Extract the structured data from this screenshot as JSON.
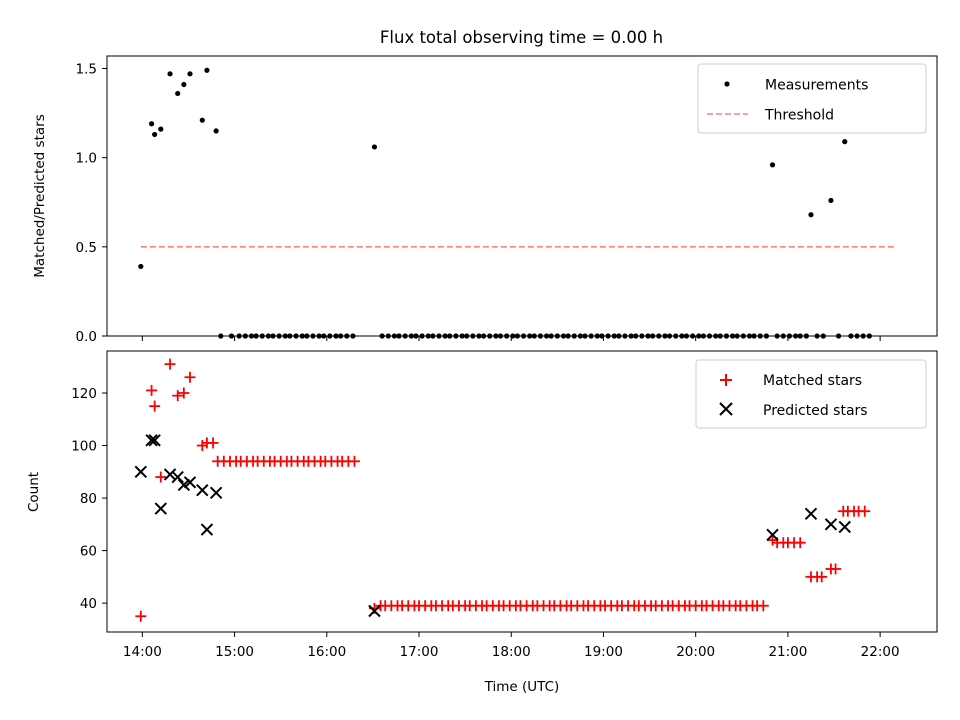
{
  "title": "Flux total observing time = 0.00 h",
  "xlabel": "Time (UTC)",
  "x_ticks": [
    "14:00",
    "15:00",
    "16:00",
    "17:00",
    "18:00",
    "19:00",
    "20:00",
    "21:00",
    "22:00"
  ],
  "colors": {
    "measurement": "#000000",
    "threshold": "#ff7f7f",
    "matched": "#ff0000",
    "predicted": "#000000"
  },
  "chart_data": [
    {
      "type": "scatter",
      "ylabel": "Matched/Predicted stars",
      "xlim": [
        "13:37",
        "22:37"
      ],
      "ylim": [
        0,
        1.57
      ],
      "y_ticks": [
        "0.0",
        "0.5",
        "1.0",
        "1.5"
      ],
      "legend_position": "top-right",
      "legend": [
        "Measurements",
        "Threshold"
      ],
      "threshold": {
        "name": "Threshold",
        "y": 0.5,
        "x_range": [
          "13:59",
          "22:09"
        ]
      },
      "series": [
        {
          "name": "Measurements",
          "points": [
            [
              "13:59",
              0.39
            ],
            [
              "14:06",
              1.19
            ],
            [
              "14:08",
              1.13
            ],
            [
              "14:12",
              1.16
            ],
            [
              "14:18",
              1.47
            ],
            [
              "14:23",
              1.36
            ],
            [
              "14:27",
              1.41
            ],
            [
              "14:31",
              1.47
            ],
            [
              "14:39",
              1.21
            ],
            [
              "14:42",
              1.49
            ],
            [
              "14:48",
              1.15
            ],
            [
              "14:51",
              0.0
            ],
            [
              "14:58",
              0.0
            ],
            [
              "15:03",
              0.0
            ],
            [
              "15:07",
              0.0
            ],
            [
              "15:11",
              0.0
            ],
            [
              "15:14",
              0.0
            ],
            [
              "15:18",
              0.0
            ],
            [
              "15:22",
              0.0
            ],
            [
              "15:25",
              0.0
            ],
            [
              "15:29",
              0.0
            ],
            [
              "15:33",
              0.0
            ],
            [
              "15:36",
              0.0
            ],
            [
              "15:40",
              0.0
            ],
            [
              "15:44",
              0.0
            ],
            [
              "15:47",
              0.0
            ],
            [
              "15:51",
              0.0
            ],
            [
              "15:55",
              0.0
            ],
            [
              "15:58",
              0.0
            ],
            [
              "16:02",
              0.0
            ],
            [
              "16:06",
              0.0
            ],
            [
              "16:09",
              0.0
            ],
            [
              "16:13",
              0.0
            ],
            [
              "16:17",
              0.0
            ],
            [
              "16:31",
              1.06
            ],
            [
              "16:36",
              0.0
            ],
            [
              "16:40",
              0.0
            ],
            [
              "16:44",
              0.0
            ],
            [
              "16:47",
              0.0
            ],
            [
              "16:51",
              0.0
            ],
            [
              "16:55",
              0.0
            ],
            [
              "16:58",
              0.0
            ],
            [
              "17:02",
              0.0
            ],
            [
              "17:06",
              0.0
            ],
            [
              "17:09",
              0.0
            ],
            [
              "17:13",
              0.0
            ],
            [
              "17:17",
              0.0
            ],
            [
              "17:20",
              0.0
            ],
            [
              "17:24",
              0.0
            ],
            [
              "17:28",
              0.0
            ],
            [
              "17:31",
              0.0
            ],
            [
              "17:35",
              0.0
            ],
            [
              "17:39",
              0.0
            ],
            [
              "17:42",
              0.0
            ],
            [
              "17:46",
              0.0
            ],
            [
              "17:50",
              0.0
            ],
            [
              "17:53",
              0.0
            ],
            [
              "17:57",
              0.0
            ],
            [
              "18:01",
              0.0
            ],
            [
              "18:04",
              0.0
            ],
            [
              "18:08",
              0.0
            ],
            [
              "18:12",
              0.0
            ],
            [
              "18:15",
              0.0
            ],
            [
              "18:19",
              0.0
            ],
            [
              "18:23",
              0.0
            ],
            [
              "18:26",
              0.0
            ],
            [
              "18:30",
              0.0
            ],
            [
              "18:34",
              0.0
            ],
            [
              "18:37",
              0.0
            ],
            [
              "18:41",
              0.0
            ],
            [
              "18:45",
              0.0
            ],
            [
              "18:48",
              0.0
            ],
            [
              "18:52",
              0.0
            ],
            [
              "18:56",
              0.0
            ],
            [
              "18:59",
              0.0
            ],
            [
              "19:03",
              0.0
            ],
            [
              "19:07",
              0.0
            ],
            [
              "19:10",
              0.0
            ],
            [
              "19:14",
              0.0
            ],
            [
              "19:18",
              0.0
            ],
            [
              "19:21",
              0.0
            ],
            [
              "19:25",
              0.0
            ],
            [
              "19:29",
              0.0
            ],
            [
              "19:32",
              0.0
            ],
            [
              "19:36",
              0.0
            ],
            [
              "19:40",
              0.0
            ],
            [
              "19:43",
              0.0
            ],
            [
              "19:47",
              0.0
            ],
            [
              "19:51",
              0.0
            ],
            [
              "19:54",
              0.0
            ],
            [
              "19:58",
              0.0
            ],
            [
              "20:02",
              0.0
            ],
            [
              "20:05",
              0.0
            ],
            [
              "20:09",
              0.0
            ],
            [
              "20:13",
              0.0
            ],
            [
              "20:16",
              0.0
            ],
            [
              "20:20",
              0.0
            ],
            [
              "20:24",
              0.0
            ],
            [
              "20:27",
              0.0
            ],
            [
              "20:31",
              0.0
            ],
            [
              "20:35",
              0.0
            ],
            [
              "20:38",
              0.0
            ],
            [
              "20:42",
              0.0
            ],
            [
              "20:46",
              0.0
            ],
            [
              "20:50",
              0.96
            ],
            [
              "20:53",
              0.0
            ],
            [
              "20:57",
              0.0
            ],
            [
              "21:01",
              0.0
            ],
            [
              "21:05",
              0.0
            ],
            [
              "21:08",
              0.0
            ],
            [
              "21:12",
              0.0
            ],
            [
              "21:15",
              0.68
            ],
            [
              "21:19",
              0.0
            ],
            [
              "21:23",
              0.0
            ],
            [
              "21:28",
              0.76
            ],
            [
              "21:33",
              0.0
            ],
            [
              "21:37",
              1.09
            ],
            [
              "21:41",
              0.0
            ],
            [
              "21:45",
              0.0
            ],
            [
              "21:49",
              0.0
            ],
            [
              "21:53",
              0.0
            ]
          ]
        }
      ]
    },
    {
      "type": "scatter",
      "ylabel": "Count",
      "xlim": [
        "13:37",
        "22:37"
      ],
      "ylim": [
        29,
        136
      ],
      "y_ticks": [
        "40",
        "60",
        "80",
        "100",
        "120"
      ],
      "legend_position": "top-right",
      "legend": [
        "Matched stars",
        "Predicted stars"
      ],
      "series": [
        {
          "name": "Matched stars",
          "points": [
            [
              "13:59",
              35
            ],
            [
              "14:06",
              121
            ],
            [
              "14:08",
              115
            ],
            [
              "14:12",
              88
            ],
            [
              "14:18",
              131
            ],
            [
              "14:23",
              119
            ],
            [
              "14:27",
              120
            ],
            [
              "14:31",
              126
            ],
            [
              "14:39",
              100
            ],
            [
              "14:42",
              101
            ],
            [
              "14:46",
              101
            ],
            [
              "14:49",
              94
            ],
            [
              "14:53",
              94
            ],
            [
              "14:57",
              94
            ],
            [
              "15:01",
              94
            ],
            [
              "15:04",
              94
            ],
            [
              "15:08",
              94
            ],
            [
              "15:12",
              94
            ],
            [
              "15:15",
              94
            ],
            [
              "15:19",
              94
            ],
            [
              "15:23",
              94
            ],
            [
              "15:26",
              94
            ],
            [
              "15:30",
              94
            ],
            [
              "15:34",
              94
            ],
            [
              "15:37",
              94
            ],
            [
              "15:41",
              94
            ],
            [
              "15:45",
              94
            ],
            [
              "15:48",
              94
            ],
            [
              "15:52",
              94
            ],
            [
              "15:56",
              94
            ],
            [
              "15:59",
              94
            ],
            [
              "16:03",
              94
            ],
            [
              "16:07",
              94
            ],
            [
              "16:10",
              94
            ],
            [
              "16:14",
              94
            ],
            [
              "16:18",
              94
            ],
            [
              "16:31",
              38
            ],
            [
              "16:35",
              39
            ],
            [
              "16:38",
              39
            ],
            [
              "16:42",
              39
            ],
            [
              "16:46",
              39
            ],
            [
              "16:49",
              39
            ],
            [
              "16:53",
              39
            ],
            [
              "16:57",
              39
            ],
            [
              "17:00",
              39
            ],
            [
              "17:04",
              39
            ],
            [
              "17:08",
              39
            ],
            [
              "17:11",
              39
            ],
            [
              "17:15",
              39
            ],
            [
              "17:19",
              39
            ],
            [
              "17:22",
              39
            ],
            [
              "17:26",
              39
            ],
            [
              "17:30",
              39
            ],
            [
              "17:33",
              39
            ],
            [
              "17:37",
              39
            ],
            [
              "17:41",
              39
            ],
            [
              "17:44",
              39
            ],
            [
              "17:48",
              39
            ],
            [
              "17:52",
              39
            ],
            [
              "17:55",
              39
            ],
            [
              "17:59",
              39
            ],
            [
              "18:03",
              39
            ],
            [
              "18:06",
              39
            ],
            [
              "18:10",
              39
            ],
            [
              "18:14",
              39
            ],
            [
              "18:17",
              39
            ],
            [
              "18:21",
              39
            ],
            [
              "18:25",
              39
            ],
            [
              "18:28",
              39
            ],
            [
              "18:32",
              39
            ],
            [
              "18:36",
              39
            ],
            [
              "18:39",
              39
            ],
            [
              "18:43",
              39
            ],
            [
              "18:47",
              39
            ],
            [
              "18:50",
              39
            ],
            [
              "18:54",
              39
            ],
            [
              "18:58",
              39
            ],
            [
              "19:01",
              39
            ],
            [
              "19:05",
              39
            ],
            [
              "19:09",
              39
            ],
            [
              "19:12",
              39
            ],
            [
              "19:16",
              39
            ],
            [
              "19:20",
              39
            ],
            [
              "19:23",
              39
            ],
            [
              "19:27",
              39
            ],
            [
              "19:31",
              39
            ],
            [
              "19:34",
              39
            ],
            [
              "19:38",
              39
            ],
            [
              "19:42",
              39
            ],
            [
              "19:45",
              39
            ],
            [
              "19:49",
              39
            ],
            [
              "19:53",
              39
            ],
            [
              "19:56",
              39
            ],
            [
              "20:00",
              39
            ],
            [
              "20:04",
              39
            ],
            [
              "20:07",
              39
            ],
            [
              "20:11",
              39
            ],
            [
              "20:15",
              39
            ],
            [
              "20:18",
              39
            ],
            [
              "20:22",
              39
            ],
            [
              "20:26",
              39
            ],
            [
              "20:29",
              39
            ],
            [
              "20:33",
              39
            ],
            [
              "20:37",
              39
            ],
            [
              "20:40",
              39
            ],
            [
              "20:44",
              39
            ],
            [
              "20:50",
              64
            ],
            [
              "20:53",
              63
            ],
            [
              "20:57",
              63
            ],
            [
              "21:00",
              63
            ],
            [
              "21:04",
              63
            ],
            [
              "21:08",
              63
            ],
            [
              "21:15",
              50
            ],
            [
              "21:19",
              50
            ],
            [
              "21:22",
              50
            ],
            [
              "21:28",
              53
            ],
            [
              "21:31",
              53
            ],
            [
              "21:36",
              75
            ],
            [
              "21:39",
              75
            ],
            [
              "21:43",
              75
            ],
            [
              "21:46",
              75
            ],
            [
              "21:50",
              75
            ]
          ]
        },
        {
          "name": "Predicted stars",
          "points": [
            [
              "13:59",
              90
            ],
            [
              "14:06",
              102
            ],
            [
              "14:08",
              102
            ],
            [
              "14:12",
              76
            ],
            [
              "14:18",
              89
            ],
            [
              "14:23",
              88
            ],
            [
              "14:27",
              85
            ],
            [
              "14:31",
              86
            ],
            [
              "14:39",
              83
            ],
            [
              "14:42",
              68
            ],
            [
              "14:48",
              82
            ],
            [
              "16:31",
              37
            ],
            [
              "20:50",
              66
            ],
            [
              "21:15",
              74
            ],
            [
              "21:28",
              70
            ],
            [
              "21:37",
              69
            ]
          ]
        }
      ]
    }
  ]
}
